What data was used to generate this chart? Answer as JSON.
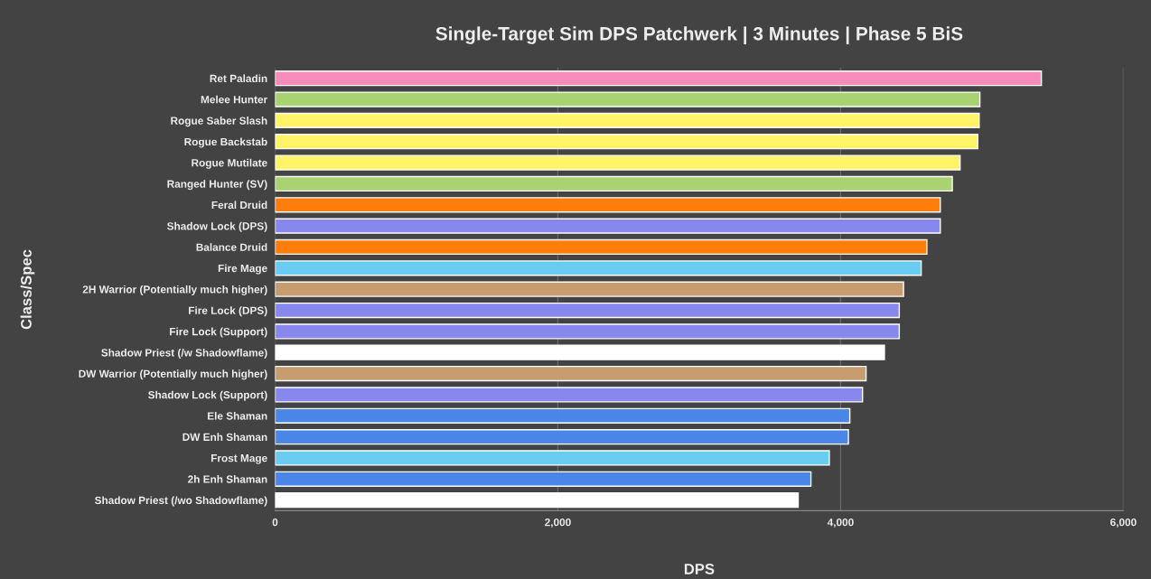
{
  "chart_data": {
    "type": "bar",
    "orientation": "horizontal",
    "title": "Single-Target Sim DPS Patchwerk | 3 Minutes | Phase 5 BiS",
    "xlabel": "DPS",
    "ylabel": "Class/Spec",
    "categories": [
      "Ret Paladin",
      "Melee Hunter",
      "Rogue Saber Slash",
      "Rogue Backstab",
      "Rogue Mutilate",
      "Ranged Hunter (SV)",
      "Feral Druid",
      "Shadow Lock (DPS)",
      "Balance Druid",
      "Fire Mage",
      "2H Warrior (Potentially much higher)",
      "Fire Lock (DPS)",
      "Fire Lock (Support)",
      "Shadow Priest (/w Shadowflame)",
      "DW Warrior (Potentially much higher)",
      "Shadow Lock (Support)",
      "Ele Shaman",
      "DW Enh Shaman",
      "Frost Mage",
      "2h Enh Shaman",
      "Shadow Priest (/wo Shadowflame)"
    ],
    "values": [
      5420,
      4985,
      4980,
      4970,
      4845,
      4790,
      4705,
      4705,
      4610,
      4570,
      4445,
      4415,
      4415,
      4310,
      4180,
      4155,
      4065,
      4055,
      3920,
      3790,
      3700
    ],
    "colors": [
      "#f58cba",
      "#a9d271",
      "#fff468",
      "#fff468",
      "#fff468",
      "#a9d271",
      "#ff7d0a",
      "#8787ed",
      "#ff7d0a",
      "#69ccf0",
      "#c79c6e",
      "#8787ed",
      "#8787ed",
      "#ffffff",
      "#c79c6e",
      "#8787ed",
      "#4a86e8",
      "#4a86e8",
      "#69ccf0",
      "#4a86e8",
      "#ffffff"
    ],
    "xlim": [
      0,
      6000
    ],
    "xticks": [
      0,
      {
        "value": 2000,
        "label": "2,000"
      },
      {
        "value": 4000,
        "label": "4,000"
      },
      {
        "value": 6000,
        "label": "6,000"
      }
    ],
    "grid": "x"
  }
}
